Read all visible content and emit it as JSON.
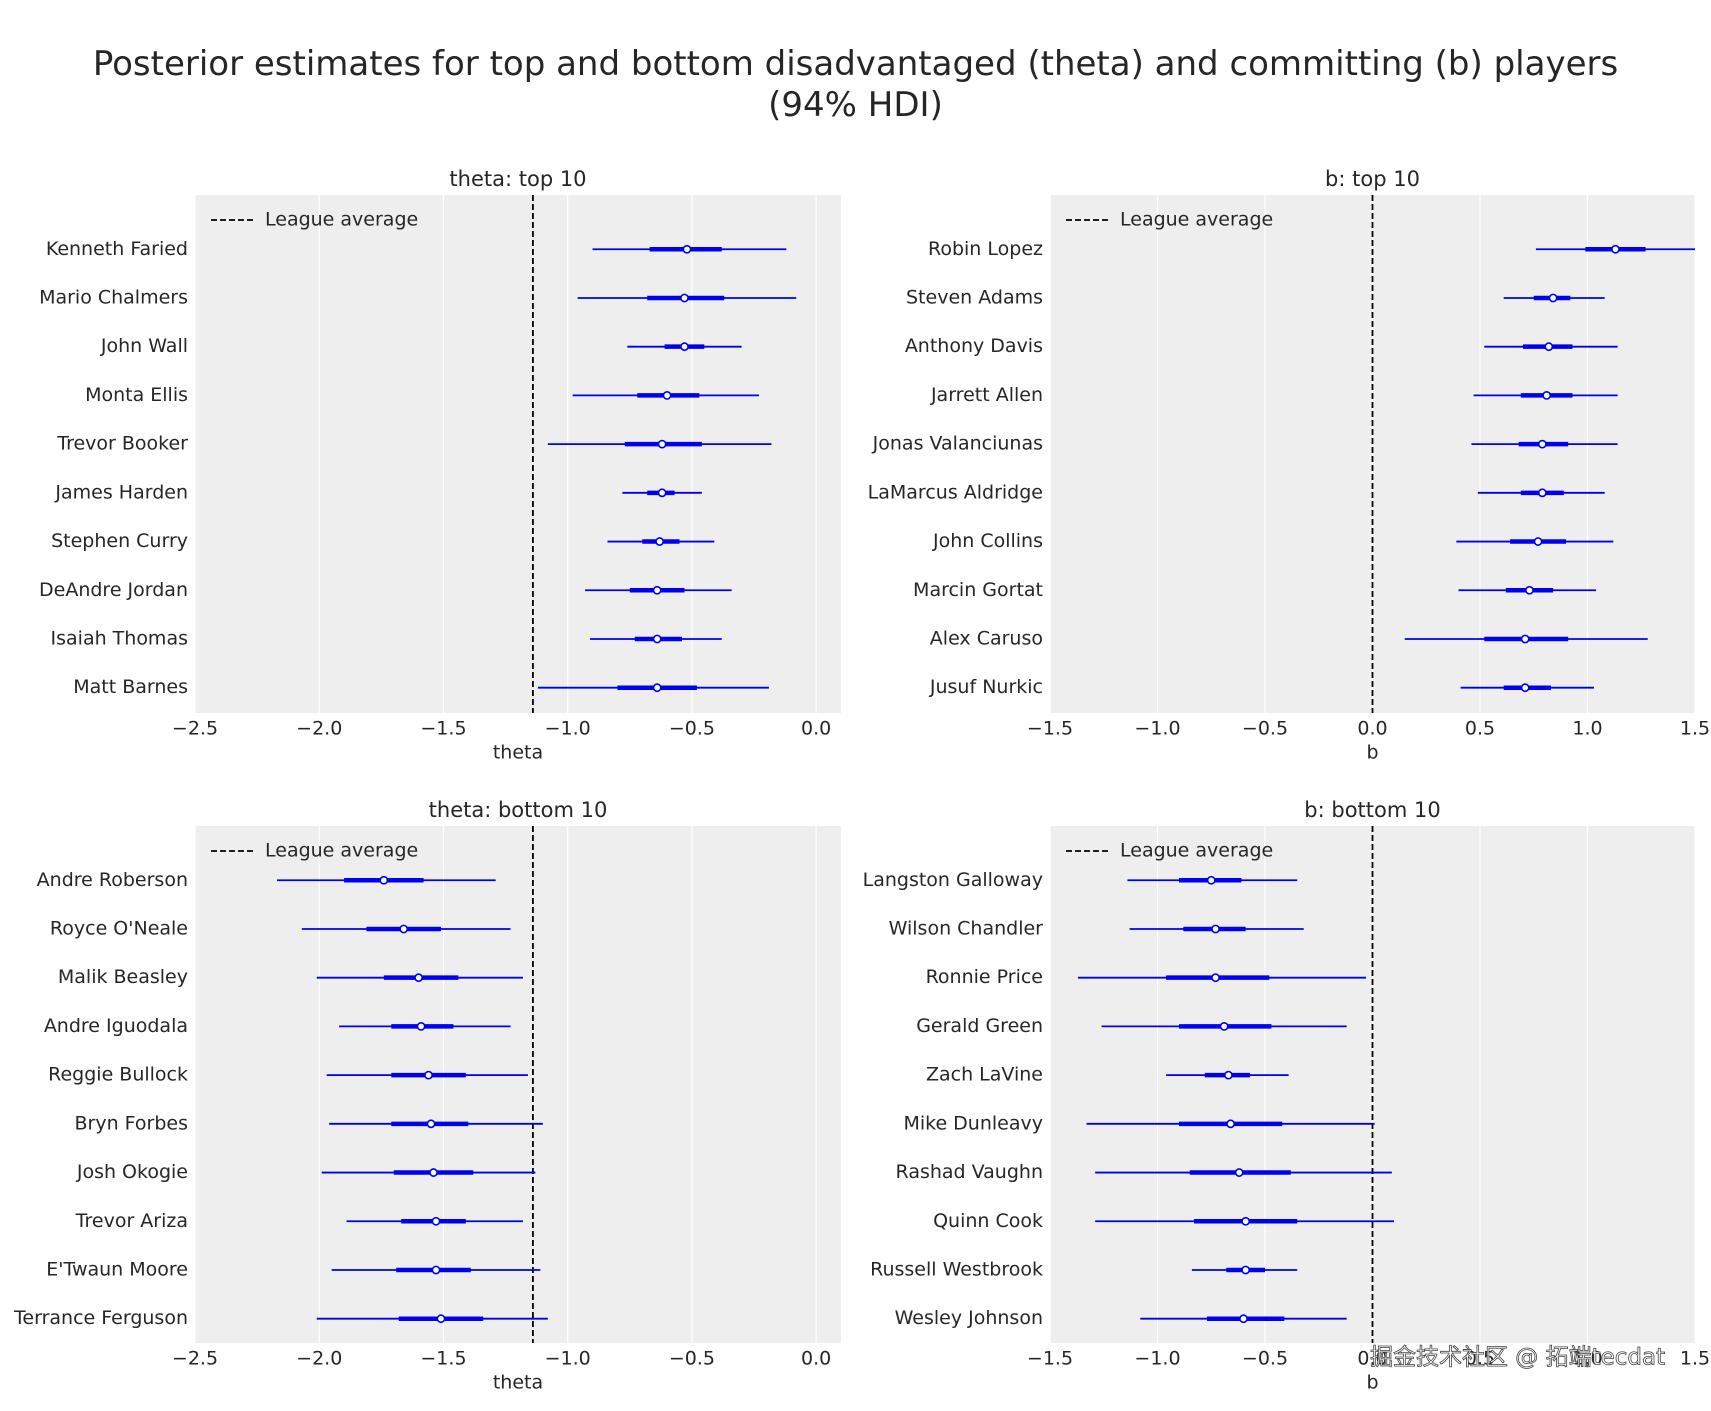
{
  "title": "Posterior estimates for top and bottom disadvantaged (theta) and committing (b) players\n(94% HDI)",
  "watermark": "掘金技术社区 @ 拓端tecdat",
  "chart_data": [
    {
      "type": "forest",
      "title": "theta: top 10",
      "xlabel": "theta",
      "categories": [
        "Kenneth Faried",
        "Mario Chalmers",
        "John Wall",
        "Monta Ellis",
        "Trevor Booker",
        "James Harden",
        "Stephen Curry",
        "DeAndre Jordan",
        "Isaiah Thomas",
        "Matt Barnes"
      ],
      "values": [
        -0.52,
        -0.53,
        -0.53,
        -0.6,
        -0.62,
        -0.62,
        -0.63,
        -0.64,
        -0.64,
        -0.64
      ],
      "low_50": [
        -0.67,
        -0.68,
        -0.61,
        -0.72,
        -0.77,
        -0.68,
        -0.7,
        -0.75,
        -0.73,
        -0.8
      ],
      "high_50": [
        -0.38,
        -0.37,
        -0.45,
        -0.47,
        -0.46,
        -0.57,
        -0.55,
        -0.53,
        -0.54,
        -0.48
      ],
      "hdi_low": [
        -0.9,
        -0.96,
        -0.76,
        -0.98,
        -1.08,
        -0.78,
        -0.84,
        -0.93,
        -0.91,
        -1.12
      ],
      "hdi_high": [
        -0.12,
        -0.08,
        -0.3,
        -0.23,
        -0.18,
        -0.46,
        -0.41,
        -0.34,
        -0.38,
        -0.19
      ],
      "color": "#0000ee",
      "reference_line": -1.14,
      "reference_label": "League average",
      "legend": "upper left",
      "grid": true,
      "xlim": [
        -2.5,
        0.1
      ],
      "xticks": [
        {
          "value": -2.5,
          "label": "−2.5"
        },
        {
          "value": -2.0,
          "label": "−2.0"
        },
        {
          "value": -1.5,
          "label": "−1.5"
        },
        {
          "value": -1.0,
          "label": "−1.0"
        },
        {
          "value": -0.5,
          "label": "−0.5"
        },
        {
          "value": 0,
          "label": "0.0"
        }
      ]
    },
    {
      "type": "forest",
      "title": "b: top 10",
      "xlabel": "b",
      "categories": [
        "Robin Lopez",
        "Steven Adams",
        "Anthony Davis",
        "Jarrett Allen",
        "Jonas Valanciunas",
        "LaMarcus Aldridge",
        "John Collins",
        "Marcin Gortat",
        "Alex Caruso",
        "Jusuf Nurkic"
      ],
      "values": [
        1.13,
        0.84,
        0.82,
        0.81,
        0.79,
        0.79,
        0.77,
        0.73,
        0.71,
        0.71
      ],
      "low_50": [
        0.99,
        0.75,
        0.7,
        0.69,
        0.68,
        0.69,
        0.64,
        0.62,
        0.52,
        0.61
      ],
      "high_50": [
        1.27,
        0.92,
        0.93,
        0.93,
        0.91,
        0.89,
        0.9,
        0.84,
        0.91,
        0.83
      ],
      "hdi_low": [
        0.76,
        0.61,
        0.52,
        0.47,
        0.46,
        0.49,
        0.39,
        0.4,
        0.15,
        0.41
      ],
      "hdi_high": [
        1.5,
        1.08,
        1.14,
        1.14,
        1.14,
        1.08,
        1.12,
        1.04,
        1.28,
        1.03
      ],
      "color": "#0000ee",
      "reference_line": 0,
      "reference_label": "League average",
      "legend": "upper left",
      "grid": true,
      "xlim": [
        -1.5,
        1.5
      ],
      "xticks": [
        {
          "value": -1.5,
          "label": "−1.5"
        },
        {
          "value": -1.0,
          "label": "−1.0"
        },
        {
          "value": -0.5,
          "label": "−0.5"
        },
        {
          "value": 0,
          "label": "0.0"
        },
        0.5,
        {
          "value": 1.0,
          "label": "1.0"
        },
        1.5
      ]
    },
    {
      "type": "forest",
      "title": "theta: bottom 10",
      "xlabel": "theta",
      "categories": [
        "Andre Roberson",
        "Royce O'Neale",
        "Malik Beasley",
        "Andre Iguodala",
        "Reggie Bullock",
        "Bryn Forbes",
        "Josh Okogie",
        "Trevor Ariza",
        "E'Twaun Moore",
        "Terrance Ferguson"
      ],
      "values": [
        -1.74,
        -1.66,
        -1.6,
        -1.59,
        -1.56,
        -1.55,
        -1.54,
        -1.53,
        -1.53,
        -1.51
      ],
      "low_50": [
        -1.9,
        -1.81,
        -1.74,
        -1.71,
        -1.71,
        -1.71,
        -1.7,
        -1.67,
        -1.69,
        -1.68
      ],
      "high_50": [
        -1.58,
        -1.51,
        -1.44,
        -1.46,
        -1.41,
        -1.4,
        -1.38,
        -1.41,
        -1.39,
        -1.34
      ],
      "hdi_low": [
        -2.17,
        -2.07,
        -2.01,
        -1.92,
        -1.97,
        -1.96,
        -1.99,
        -1.89,
        -1.95,
        -2.01
      ],
      "hdi_high": [
        -1.29,
        -1.23,
        -1.18,
        -1.23,
        -1.16,
        -1.1,
        -1.13,
        -1.18,
        -1.11,
        -1.08
      ],
      "color": "#0000ee",
      "reference_line": -1.14,
      "reference_label": "League average",
      "legend": "upper left",
      "grid": true,
      "xlim": [
        -2.5,
        0.1
      ],
      "xticks": [
        {
          "value": -2.5,
          "label": "−2.5"
        },
        {
          "value": -2.0,
          "label": "−2.0"
        },
        {
          "value": -1.5,
          "label": "−1.5"
        },
        {
          "value": -1.0,
          "label": "−1.0"
        },
        {
          "value": -0.5,
          "label": "−0.5"
        },
        {
          "value": 0,
          "label": "0.0"
        }
      ]
    },
    {
      "type": "forest",
      "title": "b: bottom 10",
      "xlabel": "b",
      "categories": [
        "Langston Galloway",
        "Wilson Chandler",
        "Ronnie Price",
        "Gerald Green",
        "Zach LaVine",
        "Mike Dunleavy",
        "Rashad Vaughn",
        "Quinn Cook",
        "Russell Westbrook",
        "Wesley Johnson"
      ],
      "values": [
        -0.75,
        -0.73,
        -0.73,
        -0.69,
        -0.67,
        -0.66,
        -0.62,
        -0.59,
        -0.59,
        -0.6
      ],
      "low_50": [
        -0.9,
        -0.88,
        -0.96,
        -0.9,
        -0.78,
        -0.9,
        -0.85,
        -0.83,
        -0.68,
        -0.77
      ],
      "high_50": [
        -0.61,
        -0.59,
        -0.48,
        -0.47,
        -0.57,
        -0.42,
        -0.38,
        -0.35,
        -0.5,
        -0.41
      ],
      "hdi_low": [
        -1.14,
        -1.13,
        -1.37,
        -1.26,
        -0.96,
        -1.33,
        -1.29,
        -1.29,
        -0.84,
        -1.08
      ],
      "hdi_high": [
        -0.35,
        -0.32,
        -0.03,
        -0.12,
        -0.39,
        0.01,
        0.09,
        0.1,
        -0.35,
        -0.12
      ],
      "color": "#0000ee",
      "reference_line": 0,
      "reference_label": "League average",
      "legend": "upper left",
      "grid": true,
      "xlim": [
        -1.5,
        1.5
      ],
      "xticks": [
        {
          "value": -1.5,
          "label": "−1.5"
        },
        {
          "value": -1.0,
          "label": "−1.0"
        },
        {
          "value": -0.5,
          "label": "−0.5"
        },
        {
          "value": 0,
          "label": "0.0"
        },
        0.5,
        {
          "value": 1.0,
          "label": "1.0"
        },
        1.5
      ]
    }
  ]
}
